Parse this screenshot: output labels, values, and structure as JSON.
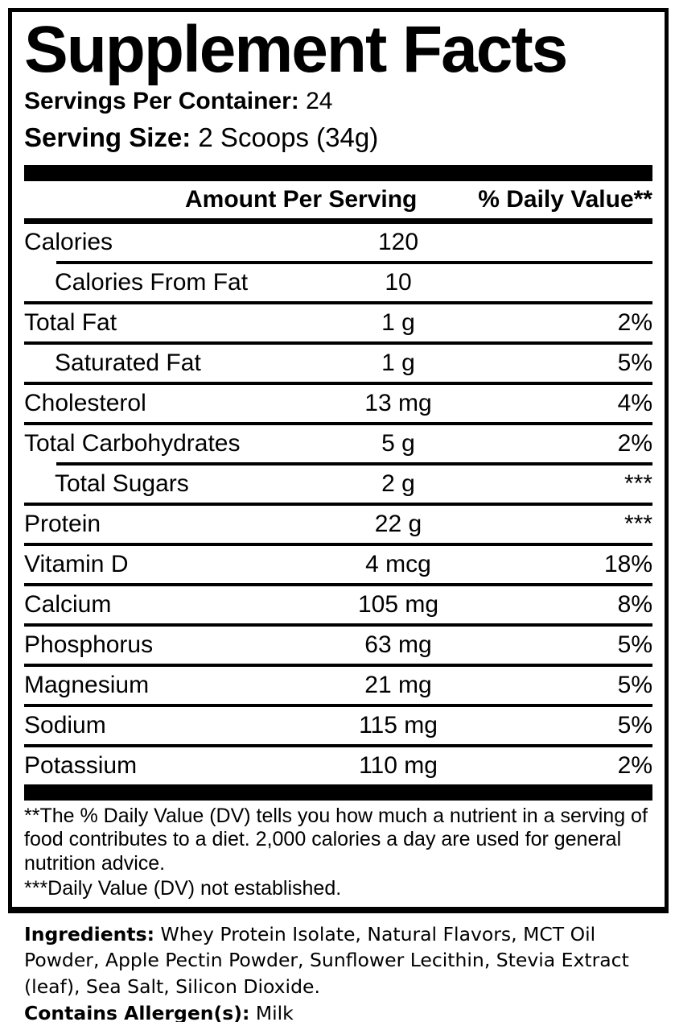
{
  "label": {
    "title": "Supplement Facts",
    "servings_per_container": {
      "label": "Servings Per Container:",
      "value": "24"
    },
    "serving_size": {
      "label": "Serving Size:",
      "value": "2 Scoops (34g)"
    },
    "columns": {
      "amount": "Amount Per Serving",
      "daily_value": "% Daily Value**"
    },
    "rows": [
      {
        "name": "Calories",
        "amount": "120",
        "dv": ""
      },
      {
        "name": "Calories From Fat",
        "amount": "10",
        "dv": ""
      },
      {
        "name": "Total Fat",
        "amount": "1 g",
        "dv": "2%"
      },
      {
        "name": "Saturated Fat",
        "amount": "1 g",
        "dv": "5%"
      },
      {
        "name": "Cholesterol",
        "amount": "13 mg",
        "dv": "4%"
      },
      {
        "name": "Total Carbohydrates",
        "amount": "5 g",
        "dv": "2%"
      },
      {
        "name": "Total Sugars",
        "amount": "2 g",
        "dv": "***"
      },
      {
        "name": "Protein",
        "amount": "22 g",
        "dv": "***"
      },
      {
        "name": "Vitamin D",
        "amount": "4 mcg",
        "dv": "18%"
      },
      {
        "name": "Calcium",
        "amount": "105 mg",
        "dv": "8%"
      },
      {
        "name": "Phosphorus",
        "amount": "63 mg",
        "dv": "5%"
      },
      {
        "name": "Magnesium",
        "amount": "21 mg",
        "dv": "5%"
      },
      {
        "name": "Sodium",
        "amount": "115 mg",
        "dv": "5%"
      },
      {
        "name": "Potassium",
        "amount": "110 mg",
        "dv": "2%"
      }
    ],
    "footnotes": [
      "**The % Daily Value (DV) tells you how much a nutrient in a serving of food contributes to a diet. 2,000 calories a day are used for general nutrition advice.",
      "***Daily Value (DV) not established."
    ]
  },
  "ingredients": {
    "label": "Ingredients:",
    "text": " Whey Protein Isolate, Natural Flavors, MCT Oil Powder, Apple Pectin Powder, Sunflower Lecithin, Stevia Extract (leaf), Sea Salt, Silicon Dioxide.",
    "allergen_label": "Contains Allergen(s):",
    "allergen_value": " Milk"
  },
  "colors": {
    "text": "#000000",
    "background": "#ffffff"
  }
}
